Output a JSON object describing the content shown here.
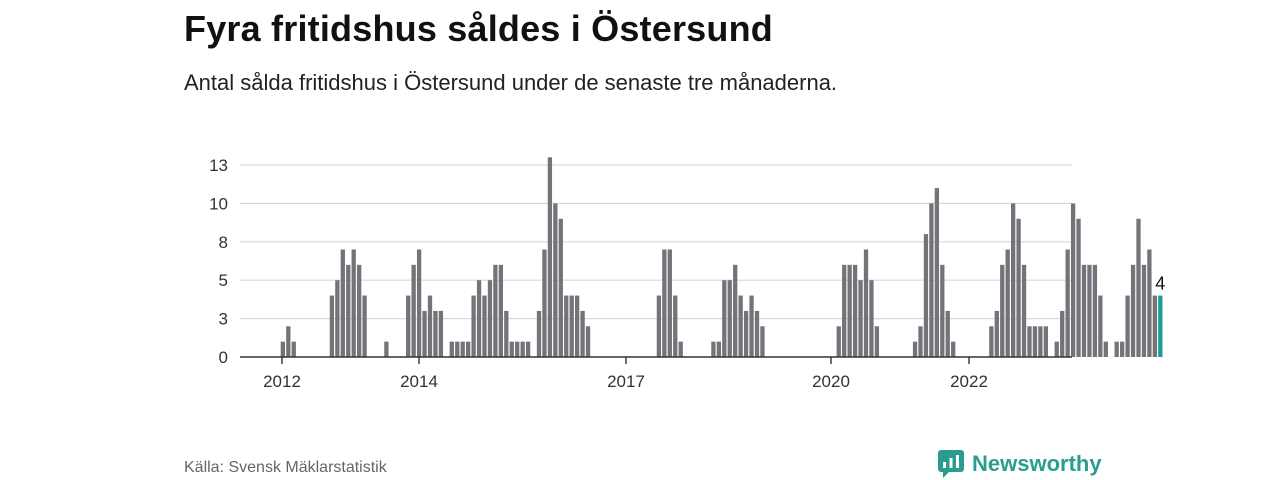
{
  "title": "Fyra fritidshus såldes i Östersund",
  "subtitle": "Antal sålda fritidshus i Östersund under de senaste tre månaderna.",
  "source": "Källa: Svensk Mäklarstatistik",
  "brand": "Newsworthy",
  "colors": {
    "bar": "#75737a",
    "highlight": "#1a9e93",
    "grid": "#d9d9d9",
    "axis": "#333333",
    "brand": "#2a9d8f"
  },
  "chart_data": {
    "type": "bar",
    "title": "Fyra fritidshus såldes i Östersund",
    "xlabel": "",
    "ylabel": "",
    "ylim": [
      0,
      12.5
    ],
    "y_ticks": [
      0,
      3,
      5,
      8,
      10,
      13
    ],
    "y_tick_values": [
      0,
      2.5,
      5,
      7.5,
      10,
      12.5
    ],
    "x_ticks": [
      "2012",
      "2014",
      "2017",
      "2020",
      "2022"
    ],
    "grid": true,
    "legend": "none",
    "highlight_label": "4",
    "values": [
      0,
      0,
      0,
      0,
      0,
      0,
      1,
      2,
      1,
      0,
      0,
      0,
      0,
      0,
      0,
      4,
      5,
      7,
      6,
      7,
      6,
      4,
      0,
      0,
      0,
      1,
      0,
      0,
      0,
      4,
      6,
      7,
      3,
      4,
      3,
      3,
      0,
      1,
      1,
      1,
      1,
      4,
      5,
      4,
      5,
      6,
      6,
      3,
      1,
      1,
      1,
      1,
      0,
      3,
      7,
      13,
      10,
      9,
      4,
      4,
      4,
      3,
      2,
      0,
      0,
      0,
      0,
      0,
      0,
      0,
      0,
      0,
      0,
      0,
      0,
      4,
      7,
      7,
      4,
      1,
      0,
      0,
      0,
      0,
      0,
      1,
      1,
      5,
      5,
      6,
      4,
      3,
      4,
      3,
      2,
      0,
      0,
      0,
      0,
      0,
      0,
      0,
      0,
      0,
      0,
      0,
      0,
      0,
      2,
      6,
      6,
      6,
      5,
      7,
      5,
      2,
      0,
      0,
      0,
      0,
      0,
      0,
      1,
      2,
      8,
      10,
      11,
      6,
      3,
      1,
      0,
      0,
      0,
      0,
      0,
      0,
      2,
      3,
      6,
      7,
      10,
      9,
      6,
      2,
      2,
      2,
      2,
      0,
      1,
      3,
      7,
      10,
      9,
      6,
      6,
      6,
      4,
      1,
      0,
      1,
      1,
      4,
      6,
      9,
      6,
      7,
      4,
      4
    ]
  }
}
